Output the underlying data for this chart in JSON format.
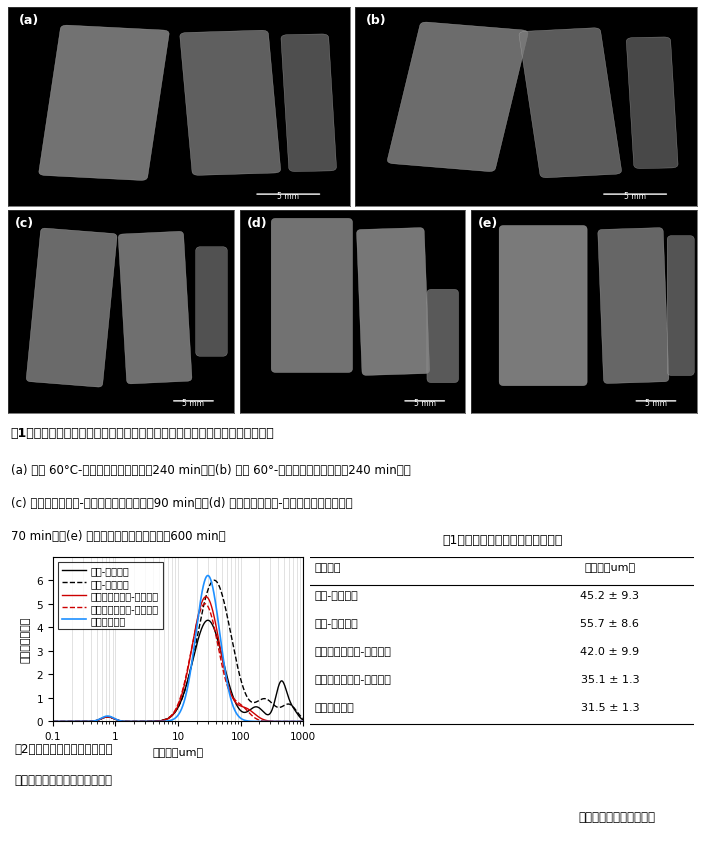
{
  "fig1_title": "図1　各条件において乾燥したジャガイモ切片のＸ線ＣＴによる構造観察結果",
  "fig1_cap1": "(a) 熱風 60°C-凍結なし（乾燥時間：240 min）、(b) 熱風 60°-凍結あり（乾燥時間：240 min）、",
  "fig1_cap2": "(c) マイクロ波減圧-凍結なし（乾燥時間：90 min）、(d) マイクロ波減圧-凍結あり（乾燥時間：",
  "fig1_cap3": "70 min）、(e) 真空凍結乾燥（乾燥時間：600 min）",
  "table_title": "表1　ジャガイモ粉末の平均粒子径",
  "table_header_col1": "乾燥条件",
  "table_header_col2": "平均径（um）",
  "table_rows": [
    [
      "熱風-凍結なし",
      "45.2 ± 9.3"
    ],
    [
      "熱風-凍結あり",
      "55.7 ± 8.6"
    ],
    [
      "マイクロ波減圧-凍結なし",
      "42.0 ± 9.9"
    ],
    [
      "マイクロ波減圧-凍結あり",
      "35.1 ± 1.3"
    ],
    [
      "真空凍結乾燥",
      "31.5 ± 1.3"
    ]
  ],
  "fig2_cap_line1": "図2　各乾燥試料から作製した",
  "fig2_cap_line2": "　ジャガイモ粉末の粒子径分布",
  "xlabel": "粒子径（um）",
  "ylabel": "相対体積（％）",
  "xlim": [
    0.1,
    1000
  ],
  "ylim": [
    0,
    7
  ],
  "yticks": [
    0,
    1,
    2,
    3,
    4,
    5,
    6
  ],
  "legend_entries": [
    "熱風-凍結なし",
    "熱風-凍結あり",
    "マイクロ波減圧-凍結なし",
    "マイクロ波減圧-凍結あり",
    "真空凍結乾燥"
  ],
  "line_colors": [
    "#000000",
    "#000000",
    "#cc0000",
    "#cc0000",
    "#1e90ff"
  ],
  "line_styles": [
    "-",
    "--",
    "-",
    "--",
    "-"
  ],
  "line_widths": [
    1.0,
    1.0,
    1.0,
    1.0,
    1.2
  ],
  "author": "（安藤泰雅、根井大介）",
  "bg_color": "#ffffff",
  "panel_bg": "#000000",
  "panel_labels": [
    "(a)",
    "(b)",
    "(c)",
    "(d)",
    "(e)"
  ]
}
